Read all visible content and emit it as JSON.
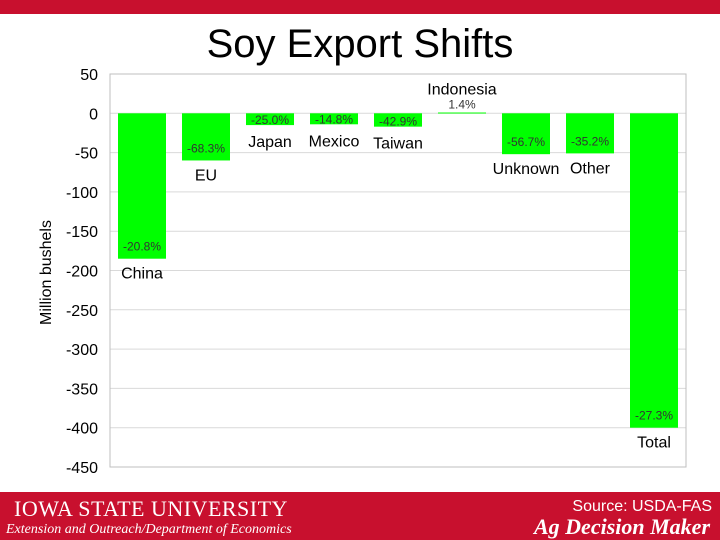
{
  "title": "Soy Export Shifts",
  "source": "Source: USDA-FAS",
  "footer": {
    "university": "IOWA STATE UNIVERSITY",
    "department": "Extension and Outreach/Department of Economics",
    "brand": "Ag Decision Maker"
  },
  "colors": {
    "bar": "#00ff00",
    "accent": "#c8102e",
    "grid": "#d9d9d9"
  },
  "chart_data": {
    "type": "bar",
    "title": "Soy Export Shifts",
    "ylabel": "Million bushels",
    "ylim": [
      -450,
      50
    ],
    "yticks": [
      50,
      0,
      -50,
      -100,
      -150,
      -200,
      -250,
      -300,
      -350,
      -400,
      -450
    ],
    "grid": true,
    "categories": [
      "China",
      "EU",
      "Japan",
      "Mexico",
      "Taiwan",
      "Indonesia",
      "Unknown",
      "Other",
      "Total"
    ],
    "values": [
      -185,
      -60,
      -15,
      -14,
      -17,
      1,
      -52,
      -51,
      -400
    ],
    "data_labels": [
      "-20.8%",
      "-68.3%",
      "-25.0%",
      "-14.8%",
      "-42.9%",
      "1.4%",
      "-56.7%",
      "-35.2%",
      "-27.3%"
    ]
  }
}
